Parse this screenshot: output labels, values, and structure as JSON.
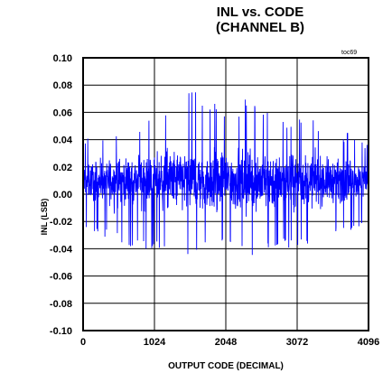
{
  "chart_data": {
    "type": "line",
    "title_line1": "INL vs. CODE",
    "title_line2": "(CHANNEL B)",
    "tag": "toc69",
    "xlabel": "OUTPUT CODE (DECIMAL)",
    "ylabel": "INL (LSB)",
    "xlim": [
      0,
      4096
    ],
    "ylim": [
      -0.1,
      0.1
    ],
    "x_ticks": [
      "0",
      "1024",
      "2048",
      "3072",
      "4096"
    ],
    "y_ticks": [
      "0.10",
      "0.08",
      "0.06",
      "0.04",
      "0.02",
      "0.00",
      "-0.02",
      "-0.04",
      "-0.06",
      "-0.08",
      "-0.10"
    ],
    "grid": true,
    "series": [
      {
        "color": "#0000ff",
        "x_start": 0,
        "x_end": 4095,
        "envelope_x": [
          0,
          256,
          512,
          768,
          1024,
          1280,
          1536,
          1792,
          2048,
          2304,
          2560,
          2816,
          3072,
          3328,
          3584,
          3840,
          4095
        ],
        "envelope_max": [
          0.045,
          0.045,
          0.05,
          0.055,
          0.06,
          0.07,
          0.075,
          0.075,
          0.07,
          0.07,
          0.065,
          0.06,
          0.06,
          0.055,
          0.05,
          0.045,
          0.04
        ],
        "envelope_min": [
          -0.025,
          -0.03,
          -0.035,
          -0.04,
          -0.04,
          -0.04,
          -0.045,
          -0.04,
          -0.04,
          -0.045,
          -0.045,
          -0.04,
          -0.04,
          -0.035,
          -0.03,
          -0.03,
          -0.02
        ],
        "mean": 0.01
      }
    ]
  }
}
